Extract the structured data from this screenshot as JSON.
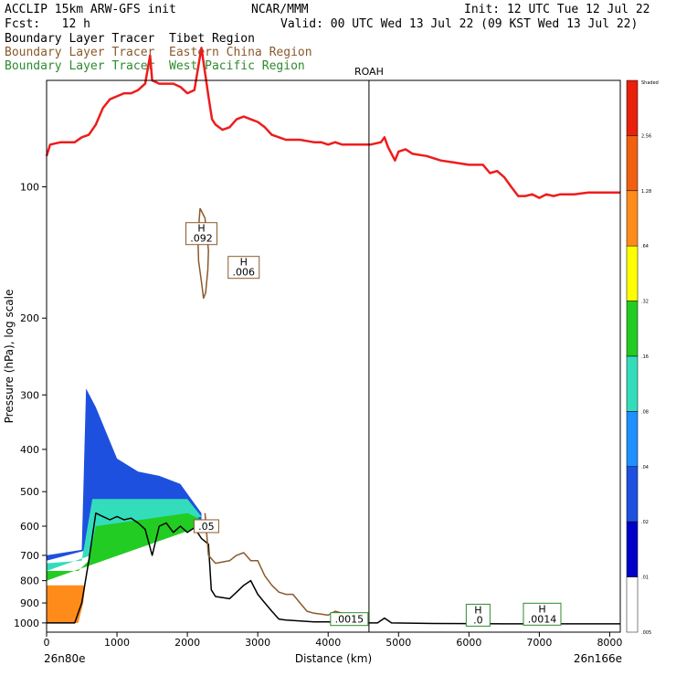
{
  "header": {
    "line1_left": "ACCLIP 15km ARW-GFS init",
    "line1_mid": "NCAR/MMM",
    "line1_right": "Init: 12 UTC Tue 12 Jul 22",
    "line2_left": "Fcst:   12 h",
    "line2_right": "Valid: 00 UTC Wed 13 Jul 22 (09 KST Wed 13 Jul 22)"
  },
  "legend": [
    {
      "label": "Boundary Layer Tracer  Tibet Region",
      "color": "#000000"
    },
    {
      "label": "Boundary Layer Tracer  Eastern China Region",
      "color": "#8b5a2b"
    },
    {
      "label": "Boundary Layer Tracer  West Pacific Region",
      "color": "#2e8b2e"
    }
  ],
  "chart_data": {
    "type": "cross-section",
    "xlabel": "Distance (km)",
    "ylabel": "Pressure (hPa), log scale",
    "xlim": [
      0,
      8150
    ],
    "ylim_hpa": [
      1050,
      57
    ],
    "x_ticks": [
      0,
      1000,
      2000,
      3000,
      4000,
      5000,
      6000,
      7000,
      8000
    ],
    "y_ticks": [
      100,
      200,
      300,
      400,
      500,
      600,
      700,
      800,
      900,
      1000
    ],
    "left_endpoint": "26n80e",
    "right_endpoint": "26n166e",
    "vertical_marker": {
      "label": "ROAH",
      "x": 4580
    },
    "colorbar": {
      "levels": [
        "Shaded",
        "2.56",
        "1.28",
        ".64",
        ".32",
        ".16",
        ".08",
        ".04",
        ".02",
        ".01",
        ".005"
      ],
      "colors": [
        "#e8200c",
        "#f06010",
        "#ff8c1a",
        "#ffff00",
        "#22cc22",
        "#33ddbb",
        "#1e90ff",
        "#1e50e0",
        "#0000c8",
        "#ffffff"
      ]
    },
    "boxes": [
      {
        "label": "H",
        "value": ".092",
        "x": 2200,
        "p": 128,
        "color": "#8b5a2b"
      },
      {
        "label": "H",
        "value": ".006",
        "x": 2800,
        "p": 153,
        "color": "#8b5a2b"
      },
      {
        "label": "",
        "value": ".05",
        "x": 2270,
        "p": 600,
        "color": "#8b5a2b"
      },
      {
        "label": "",
        "value": ".0015",
        "x": 4300,
        "p": 980,
        "color": "#2e8b2e"
      },
      {
        "label": "H",
        "value": ".0",
        "x": 6130,
        "p": 960,
        "color": "#2e8b2e"
      },
      {
        "label": "H",
        "value": ".0014",
        "x": 7040,
        "p": 955,
        "color": "#2e8b2e"
      }
    ],
    "series": [
      {
        "name": "Red reference line (tropopause)",
        "color": "#ee1c1c",
        "points": [
          [
            0,
            85
          ],
          [
            50,
            80
          ],
          [
            200,
            79
          ],
          [
            400,
            79
          ],
          [
            500,
            77
          ],
          [
            600,
            76
          ],
          [
            700,
            72
          ],
          [
            800,
            66
          ],
          [
            900,
            63
          ],
          [
            1000,
            62
          ],
          [
            1100,
            61
          ],
          [
            1200,
            61
          ],
          [
            1300,
            60
          ],
          [
            1400,
            58
          ],
          [
            1470,
            50
          ],
          [
            1500,
            57
          ],
          [
            1600,
            58
          ],
          [
            1700,
            58
          ],
          [
            1800,
            58
          ],
          [
            1900,
            59
          ],
          [
            2000,
            61
          ],
          [
            2100,
            60
          ],
          [
            2200,
            48
          ],
          [
            2300,
            62
          ],
          [
            2350,
            70
          ],
          [
            2400,
            72
          ],
          [
            2500,
            74
          ],
          [
            2600,
            73
          ],
          [
            2700,
            70
          ],
          [
            2800,
            69
          ],
          [
            2900,
            70
          ],
          [
            3000,
            71
          ],
          [
            3100,
            73
          ],
          [
            3200,
            76
          ],
          [
            3300,
            77
          ],
          [
            3400,
            78
          ],
          [
            3600,
            78
          ],
          [
            3800,
            79
          ],
          [
            3900,
            79
          ],
          [
            4000,
            80
          ],
          [
            4100,
            79
          ],
          [
            4200,
            80
          ],
          [
            4400,
            80
          ],
          [
            4600,
            80
          ],
          [
            4750,
            79
          ],
          [
            4800,
            77
          ],
          [
            4850,
            81
          ],
          [
            4950,
            87
          ],
          [
            5000,
            83
          ],
          [
            5100,
            82
          ],
          [
            5200,
            84
          ],
          [
            5400,
            85
          ],
          [
            5600,
            87
          ],
          [
            5800,
            88
          ],
          [
            6000,
            89
          ],
          [
            6200,
            89
          ],
          [
            6300,
            93
          ],
          [
            6400,
            92
          ],
          [
            6500,
            95
          ],
          [
            6600,
            100
          ],
          [
            6700,
            105
          ],
          [
            6800,
            105
          ],
          [
            6900,
            104
          ],
          [
            7000,
            106
          ],
          [
            7100,
            104
          ],
          [
            7200,
            105
          ],
          [
            7300,
            104
          ],
          [
            7500,
            104
          ],
          [
            7700,
            103
          ],
          [
            7900,
            103
          ],
          [
            8150,
            103
          ]
        ]
      },
      {
        "name": "Terrain / surface (black)",
        "color": "#000000",
        "points": [
          [
            0,
            1000
          ],
          [
            400,
            1000
          ],
          [
            500,
            900
          ],
          [
            600,
            720
          ],
          [
            700,
            560
          ],
          [
            800,
            570
          ],
          [
            900,
            580
          ],
          [
            1000,
            570
          ],
          [
            1100,
            580
          ],
          [
            1200,
            575
          ],
          [
            1300,
            590
          ],
          [
            1400,
            610
          ],
          [
            1500,
            700
          ],
          [
            1600,
            600
          ],
          [
            1700,
            590
          ],
          [
            1800,
            620
          ],
          [
            1900,
            600
          ],
          [
            2000,
            620
          ],
          [
            2100,
            605
          ],
          [
            2200,
            640
          ],
          [
            2300,
            660
          ],
          [
            2340,
            840
          ],
          [
            2400,
            870
          ],
          [
            2600,
            880
          ],
          [
            2700,
            850
          ],
          [
            2800,
            820
          ],
          [
            2900,
            800
          ],
          [
            3000,
            860
          ],
          [
            3100,
            900
          ],
          [
            3200,
            940
          ],
          [
            3300,
            980
          ],
          [
            3400,
            985
          ],
          [
            3600,
            990
          ],
          [
            3800,
            995
          ],
          [
            4000,
            995
          ],
          [
            4200,
            1000
          ],
          [
            4500,
            1000
          ],
          [
            4700,
            1000
          ],
          [
            4800,
            975
          ],
          [
            4900,
            1000
          ],
          [
            5500,
            1003
          ],
          [
            6500,
            1005
          ],
          [
            7500,
            1005
          ],
          [
            8150,
            1005
          ]
        ]
      },
      {
        "name": "Eastern China tracer contour (terrain-following)",
        "color": "#8b5a2b",
        "points": [
          [
            2250,
            560
          ],
          [
            2300,
            700
          ],
          [
            2400,
            730
          ],
          [
            2600,
            720
          ],
          [
            2700,
            700
          ],
          [
            2800,
            690
          ],
          [
            2900,
            720
          ],
          [
            3000,
            720
          ],
          [
            3100,
            780
          ],
          [
            3200,
            820
          ],
          [
            3300,
            850
          ],
          [
            3400,
            860
          ],
          [
            3500,
            860
          ],
          [
            3600,
            900
          ],
          [
            3700,
            940
          ],
          [
            3800,
            950
          ],
          [
            3900,
            955
          ],
          [
            4000,
            960
          ],
          [
            4100,
            940
          ],
          [
            4200,
            950
          ],
          [
            4300,
            955
          ]
        ]
      },
      {
        "name": "Eastern China tracer blob near 2200 km",
        "color": "#8b5a2b",
        "points": [
          [
            2180,
            112
          ],
          [
            2250,
            118
          ],
          [
            2280,
            130
          ],
          [
            2300,
            140
          ],
          [
            2290,
            155
          ],
          [
            2260,
            175
          ],
          [
            2230,
            180
          ],
          [
            2200,
            165
          ],
          [
            2160,
            148
          ],
          [
            2150,
            132
          ],
          [
            2170,
            118
          ],
          [
            2180,
            112
          ]
        ]
      }
    ],
    "shaded_regions": [
      {
        "name": "Tracer > 1.28 (orange)",
        "color": "#ff8c1a",
        "polygon": [
          [
            0,
            1000
          ],
          [
            450,
            1000
          ],
          [
            520,
            900
          ],
          [
            550,
            820
          ],
          [
            0,
            820
          ]
        ]
      },
      {
        "name": "Tracer .32-.64 (green)",
        "color": "#22cc22",
        "polygon": [
          [
            0,
            760
          ],
          [
            450,
            760
          ],
          [
            600,
            720
          ],
          [
            700,
            600
          ],
          [
            2000,
            560
          ],
          [
            2200,
            580
          ],
          [
            2200,
            600
          ],
          [
            0,
            800
          ]
        ]
      },
      {
        "name": "Tracer .08-.16 (light blue)",
        "color": "#33ddbb",
        "polygon": [
          [
            0,
            730
          ],
          [
            500,
            720
          ],
          [
            650,
            520
          ],
          [
            2000,
            520
          ],
          [
            2200,
            570
          ],
          [
            0,
            760
          ]
        ]
      },
      {
        "name": "Tracer .02-.04 (blue)",
        "color": "#1e50e0",
        "polygon": [
          [
            0,
            700
          ],
          [
            500,
            680
          ],
          [
            560,
            290
          ],
          [
            700,
            320
          ],
          [
            1000,
            420
          ],
          [
            1300,
            450
          ],
          [
            1600,
            460
          ],
          [
            1900,
            480
          ],
          [
            2200,
            560
          ],
          [
            2200,
            580
          ],
          [
            0,
            720
          ]
        ]
      }
    ]
  }
}
